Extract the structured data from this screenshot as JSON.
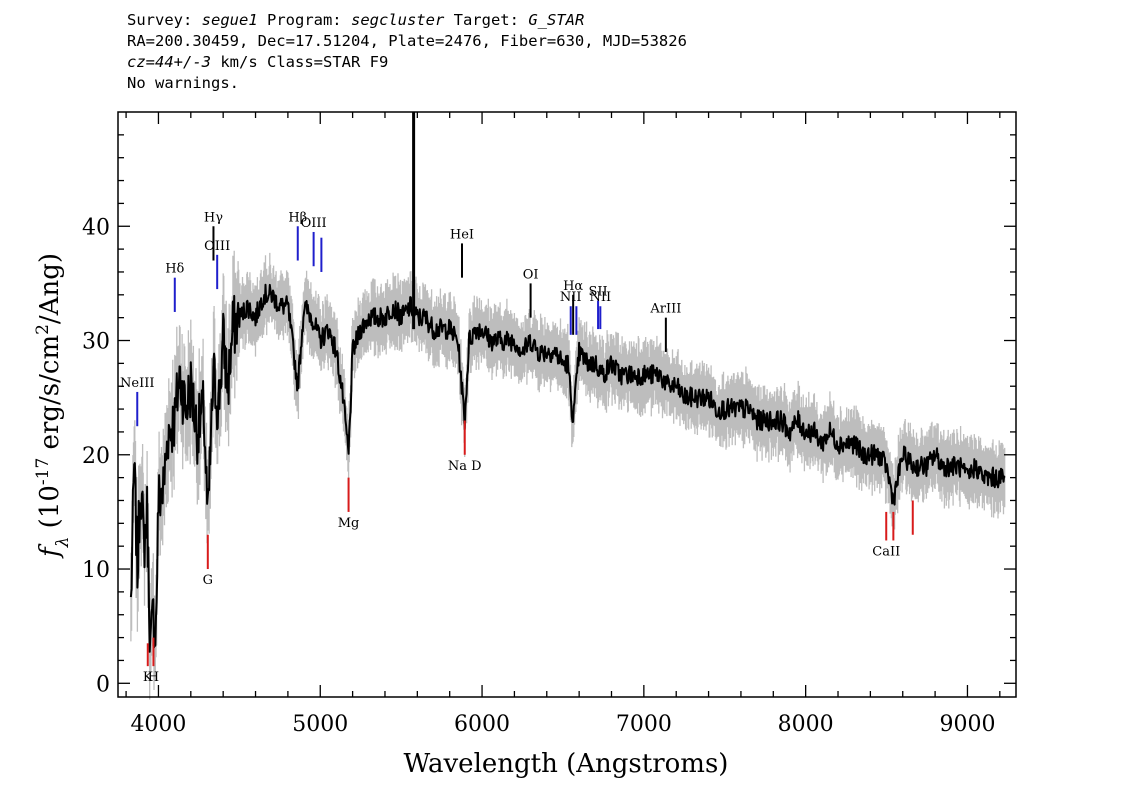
{
  "header": {
    "line1": {
      "survey_label": "Survey: ",
      "survey": "segue1",
      "program_label": " Program: ",
      "program": "segcluster",
      "target_label": " Target: ",
      "target": "G_STAR"
    },
    "line2": "RA=200.30459, Dec=17.51204, Plate=2476, Fiber=630, MJD=53826",
    "line3": {
      "cz": "cz=44+/-3",
      "rest": " km/s Class=STAR F9"
    },
    "line4": "No warnings."
  },
  "chart_data": {
    "type": "line",
    "xlabel": "Wavelength (Angstroms)",
    "ylabel": "f_λ (10^-17 erg/s/cm^2/Ang)",
    "xlim": [
      3750,
      9300
    ],
    "ylim": [
      -1.2,
      50
    ],
    "xticks": [
      4000,
      5000,
      6000,
      7000,
      8000,
      9000
    ],
    "yticks": [
      0,
      10,
      20,
      30,
      40
    ],
    "grid": false,
    "colors": {
      "spectrum": "#000000",
      "noise": "#bdbdbd",
      "emission_line": "#1f1fcc",
      "absorption_line": "#d81b1b",
      "other_line": "#000000"
    },
    "spectrum": {
      "name": "flux",
      "x": [
        3830,
        3850,
        3870,
        3890,
        3910,
        3930,
        3950,
        3968,
        3985,
        4000,
        4030,
        4060,
        4101,
        4130,
        4170,
        4200,
        4240,
        4280,
        4305,
        4340,
        4370,
        4400,
        4430,
        4460,
        4500,
        4550,
        4600,
        4650,
        4700,
        4750,
        4800,
        4861,
        4900,
        4950,
        5000,
        5050,
        5100,
        5140,
        5175,
        5200,
        5250,
        5300,
        5350,
        5400,
        5450,
        5500,
        5560,
        5600,
        5650,
        5700,
        5750,
        5800,
        5850,
        5893,
        5920,
        5960,
        6000,
        6050,
        6100,
        6150,
        6200,
        6250,
        6300,
        6350,
        6400,
        6450,
        6500,
        6530,
        6563,
        6600,
        6650,
        6700,
        6750,
        6800,
        6850,
        6900,
        6950,
        7000,
        7050,
        7100,
        7150,
        7200,
        7250,
        7300,
        7350,
        7400,
        7450,
        7500,
        7550,
        7600,
        7650,
        7700,
        7750,
        7800,
        7850,
        7900,
        7950,
        8000,
        8050,
        8100,
        8150,
        8200,
        8250,
        8300,
        8350,
        8400,
        8450,
        8498,
        8542,
        8600,
        8662,
        8700,
        8750,
        8800,
        8850,
        8900,
        8950,
        9000,
        9050,
        9100,
        9150,
        9200,
        9230
      ],
      "y": [
        7,
        19,
        10,
        18,
        12,
        15,
        3,
        6,
        5,
        16,
        17,
        22,
        23,
        27,
        24,
        26,
        22,
        24,
        14,
        27,
        24,
        30,
        26,
        31,
        32,
        33,
        32,
        34,
        34,
        33,
        33,
        26,
        33,
        32,
        30,
        31,
        29,
        25,
        20,
        29,
        31,
        32,
        32,
        32,
        33,
        32,
        33,
        32,
        32,
        31,
        31,
        31,
        30,
        23,
        30,
        31,
        31,
        30,
        30,
        30,
        30,
        29,
        30,
        29,
        29,
        29,
        28,
        28,
        23,
        29,
        28,
        28,
        27,
        28,
        27,
        27,
        27,
        27,
        27,
        27,
        26,
        26,
        25,
        25,
        25,
        25,
        24,
        24,
        24,
        24,
        24,
        23,
        23,
        23,
        23,
        22,
        23,
        22,
        22,
        21,
        22,
        21,
        21,
        21,
        20,
        20,
        20,
        19,
        16,
        20,
        19,
        19,
        19,
        20,
        19,
        19,
        19,
        18,
        19,
        18,
        18,
        18,
        18
      ],
      "spike": {
        "x": 5577,
        "y": 50
      }
    },
    "emission_lines": [
      {
        "label": "NeIII",
        "x": 3869,
        "y_top": 25.5,
        "y_bottom": 22.5,
        "color": "emission_line"
      },
      {
        "label": "Hδ",
        "x": 4101,
        "y_top": 35.5,
        "y_bottom": 32.5,
        "color": "emission_line"
      },
      {
        "label": "Hγ",
        "x": 4340,
        "y_top": 40.0,
        "y_bottom": 37.0,
        "color": "other_line"
      },
      {
        "label": "OIII",
        "x": 4363,
        "y_top": 37.5,
        "y_bottom": 34.5,
        "color": "emission_line"
      },
      {
        "label": "Hβ",
        "x": 4861,
        "y_top": 40.0,
        "y_bottom": 37.0,
        "color": "emission_line"
      },
      {
        "label": "OIII",
        "x": 4959,
        "y_top": 39.5,
        "y_bottom": 36.5,
        "color": "emission_line"
      },
      {
        "label": "",
        "x": 5007,
        "y_top": 39.0,
        "y_bottom": 36.0,
        "color": "emission_line"
      },
      {
        "label": "HeI",
        "x": 5876,
        "y_top": 38.5,
        "y_bottom": 35.5,
        "color": "other_line"
      },
      {
        "label": "OI",
        "x": 6300,
        "y_top": 35.0,
        "y_bottom": 32.0,
        "color": "other_line"
      },
      {
        "label": "NII",
        "x": 6548,
        "y_top": 33.0,
        "y_bottom": 30.5,
        "color": "emission_line"
      },
      {
        "label": "Hα",
        "x": 6563,
        "y_top": 34.0,
        "y_bottom": 30.5,
        "color": "other_line"
      },
      {
        "label": "",
        "x": 6583,
        "y_top": 33.0,
        "y_bottom": 30.5,
        "color": "emission_line"
      },
      {
        "label": "SII",
        "x": 6717,
        "y_top": 33.5,
        "y_bottom": 31.0,
        "color": "emission_line"
      },
      {
        "label": "NII",
        "x": 6731,
        "y_top": 33.0,
        "y_bottom": 31.0,
        "color": "emission_line"
      },
      {
        "label": "ArIII",
        "x": 7136,
        "y_top": 32.0,
        "y_bottom": 29.0,
        "color": "other_line"
      }
    ],
    "absorption_lines": [
      {
        "label": "K",
        "x": 3934,
        "y_top": 3.5,
        "y_bottom": 1.5
      },
      {
        "label": "H",
        "x": 3969,
        "y_top": 4.0,
        "y_bottom": 1.5
      },
      {
        "label": "G",
        "x": 4305,
        "y_top": 13.0,
        "y_bottom": 10.0
      },
      {
        "label": "Mg",
        "x": 5175,
        "y_top": 18.0,
        "y_bottom": 15.0
      },
      {
        "label": "Na D",
        "x": 5893,
        "y_top": 23.0,
        "y_bottom": 20.0
      },
      {
        "label": "CaII",
        "x": 8498,
        "y_top": 15.0,
        "y_bottom": 12.5
      },
      {
        "label": "",
        "x": 8542,
        "y_top": 15.0,
        "y_bottom": 12.5
      },
      {
        "label": "",
        "x": 8662,
        "y_top": 16.0,
        "y_bottom": 13.0
      }
    ]
  }
}
